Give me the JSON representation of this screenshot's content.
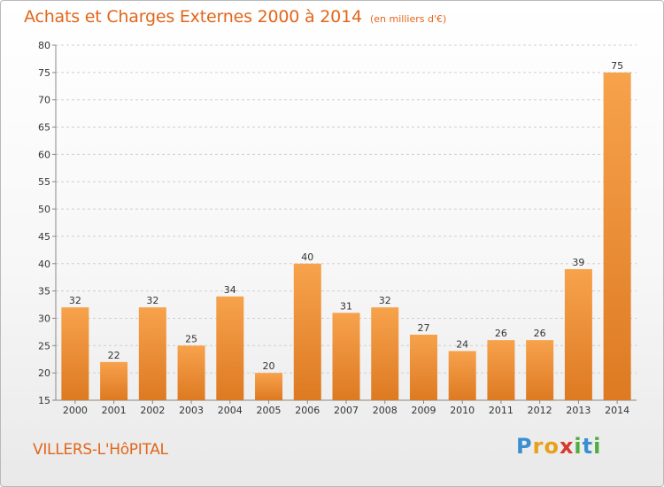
{
  "chart_data": {
    "type": "bar",
    "title": "Achats et Charges Externes 2000 à 2014",
    "subtitle": "(en milliers d'€)",
    "categories": [
      "2000",
      "2001",
      "2002",
      "2003",
      "2004",
      "2005",
      "2006",
      "2007",
      "2008",
      "2009",
      "2010",
      "2011",
      "2012",
      "2013",
      "2014"
    ],
    "values": [
      32,
      22,
      32,
      25,
      34,
      20,
      40,
      31,
      32,
      27,
      24,
      26,
      26,
      39,
      75
    ],
    "ylim": [
      15,
      80
    ],
    "yticks": [
      15,
      20,
      25,
      30,
      35,
      40,
      45,
      50,
      55,
      60,
      65,
      70,
      75,
      80
    ],
    "grid": "horizontal dashed",
    "xlabel": "",
    "ylabel": "",
    "data_labels": true
  },
  "location": "VILLERS-L'HôPITAL",
  "brand": {
    "letters": [
      "P",
      "r",
      "o",
      "x",
      "i",
      "t",
      "i"
    ]
  },
  "colors": {
    "accent": "#e2661a",
    "bar_top": "#f7a24c",
    "bar_bottom": "#dd7a22"
  }
}
